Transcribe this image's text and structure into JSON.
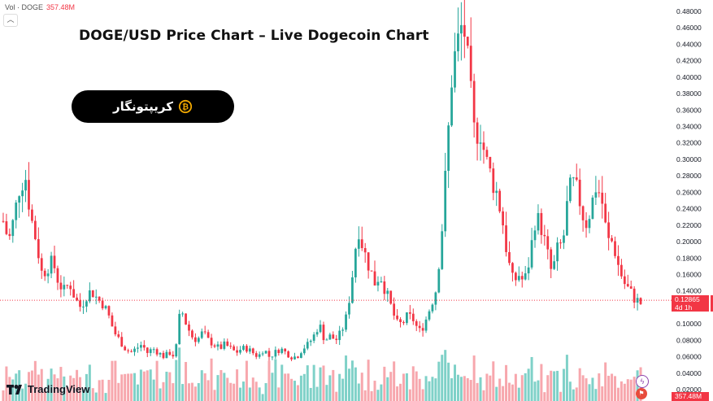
{
  "header": {
    "vol_label": "Vol · DOGE",
    "vol_value": "357.48M",
    "title": "DOGE/USD Price Chart – Live Dogecoin Chart"
  },
  "badge": {
    "text": "کریپتونگار",
    "icon": "bitcoin-coin-icon"
  },
  "branding": {
    "name": "TradingView"
  },
  "price_tag": {
    "price": "0.12865",
    "countdown": "4d 1h"
  },
  "volume_tag": {
    "value": "357.48M"
  },
  "colors": {
    "up": "#26a69a",
    "down": "#f23645",
    "vol_up": "#7fd1c8",
    "vol_down": "#f7a7ad"
  },
  "chart_data": {
    "type": "candlestick",
    "title": "DOGE/USD Price Chart – Live Dogecoin Chart",
    "xlabel": "",
    "ylabel": "",
    "ylim": [
      0.02,
      0.48
    ],
    "y_ticks": [
      "0.48000",
      "0.46000",
      "0.44000",
      "0.42000",
      "0.40000",
      "0.38000",
      "0.36000",
      "0.34000",
      "0.32000",
      "0.30000",
      "0.28000",
      "0.26000",
      "0.24000",
      "0.22000",
      "0.20000",
      "0.18000",
      "0.16000",
      "0.14000",
      "0.12000",
      "0.10000",
      "0.08000",
      "0.06000",
      "0.04000",
      "0.02000"
    ],
    "current_price": 0.12865,
    "close_path": [
      0.225,
      0.2,
      0.23,
      0.27,
      0.28,
      0.23,
      0.2,
      0.16,
      0.17,
      0.175,
      0.15,
      0.14,
      0.15,
      0.13,
      0.12,
      0.135,
      0.14,
      0.13,
      0.125,
      0.11,
      0.09,
      0.08,
      0.07,
      0.065,
      0.07,
      0.075,
      0.065,
      0.07,
      0.065,
      0.06,
      0.065,
      0.06,
      0.12,
      0.1,
      0.085,
      0.08,
      0.09,
      0.08,
      0.075,
      0.07,
      0.075,
      0.07,
      0.065,
      0.07,
      0.07,
      0.065,
      0.06,
      0.07,
      0.06,
      0.065,
      0.07,
      0.065,
      0.06,
      0.06,
      0.07,
      0.075,
      0.085,
      0.1,
      0.08,
      0.085,
      0.08,
      0.09,
      0.11,
      0.16,
      0.22,
      0.19,
      0.17,
      0.15,
      0.16,
      0.14,
      0.12,
      0.1,
      0.1,
      0.11,
      0.105,
      0.09,
      0.1,
      0.12,
      0.14,
      0.2,
      0.3,
      0.41,
      0.44,
      0.47,
      0.4,
      0.33,
      0.34,
      0.3,
      0.28,
      0.26,
      0.23,
      0.18,
      0.15,
      0.16,
      0.15,
      0.18,
      0.23,
      0.22,
      0.19,
      0.16,
      0.19,
      0.2,
      0.26,
      0.27,
      0.25,
      0.22,
      0.24,
      0.27,
      0.25,
      0.2,
      0.2,
      0.17,
      0.15,
      0.14,
      0.13,
      0.125
    ]
  }
}
